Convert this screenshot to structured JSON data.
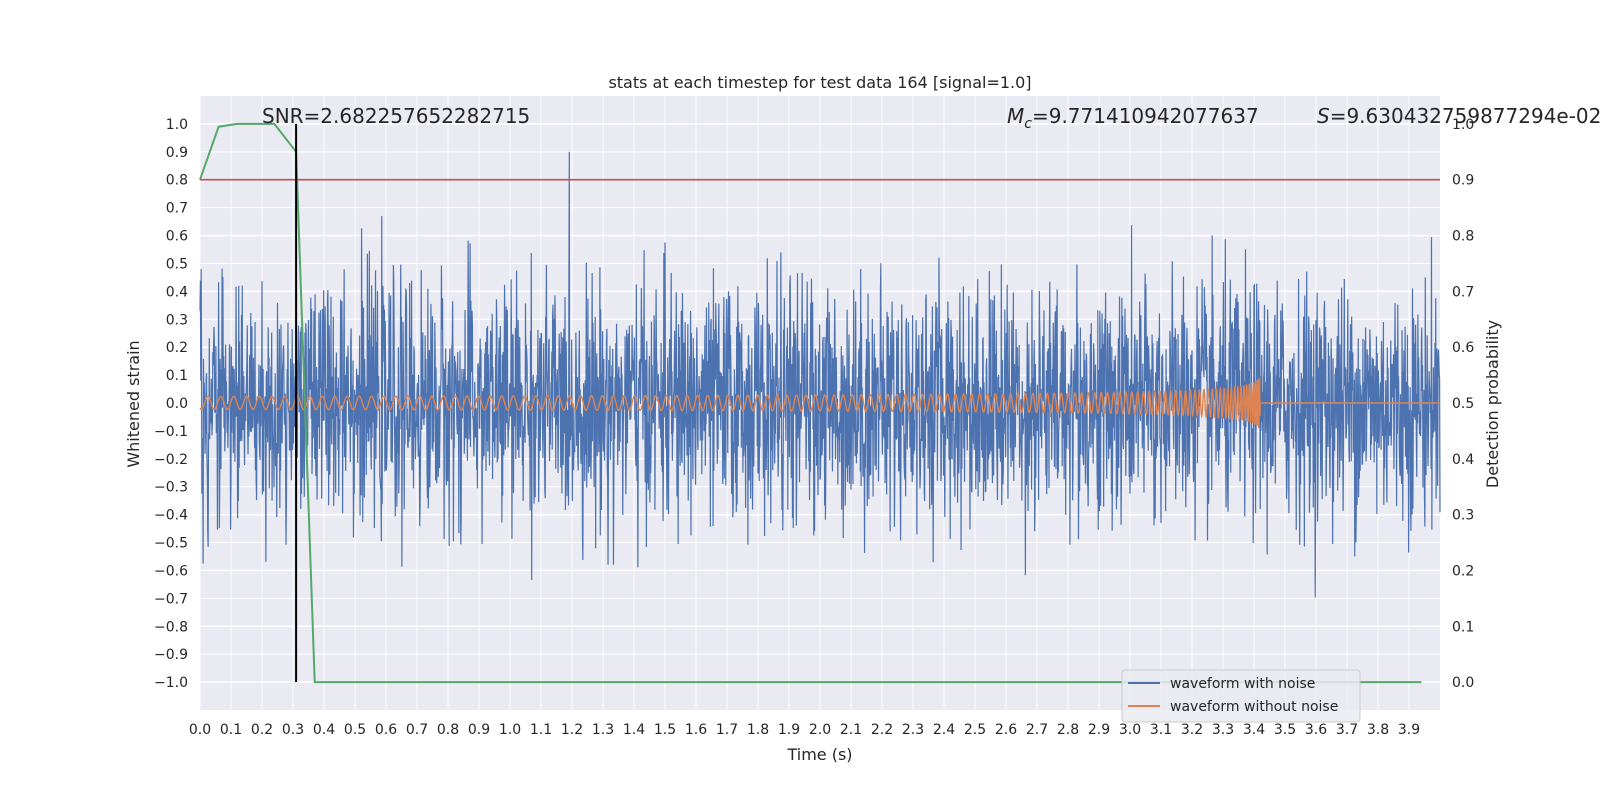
{
  "chart_data": {
    "type": "line",
    "title": "stats at each timestep for test data 164 [signal=1.0]",
    "xlabel": "Time (s)",
    "ylabel_left": "Whitened strain",
    "ylabel_right": "Detection probability",
    "xlim": [
      0.0,
      4.0
    ],
    "ylim_left": [
      -1.1,
      1.1
    ],
    "ylim_right": [
      -0.05,
      1.05
    ],
    "x_ticks": [
      "0.0",
      "0.1",
      "0.2",
      "0.3",
      "0.4",
      "0.5",
      "0.6",
      "0.7",
      "0.8",
      "0.9",
      "1.0",
      "1.1",
      "1.2",
      "1.3",
      "1.4",
      "1.5",
      "1.6",
      "1.7",
      "1.8",
      "1.9",
      "2.0",
      "2.1",
      "2.2",
      "2.3",
      "2.4",
      "2.5",
      "2.6",
      "2.7",
      "2.8",
      "2.9",
      "3.0",
      "3.1",
      "3.2",
      "3.3",
      "3.4",
      "3.5",
      "3.6",
      "3.7",
      "3.8",
      "3.9"
    ],
    "y_ticks_left": [
      "1.0",
      "0.9",
      "0.8",
      "0.7",
      "0.6",
      "0.5",
      "0.4",
      "0.3",
      "0.2",
      "0.1",
      "0.0",
      "−0.1",
      "−0.2",
      "−0.3",
      "−0.4",
      "−0.5",
      "−0.6",
      "−0.7",
      "−0.8",
      "−0.9",
      "−1.0"
    ],
    "y_ticks_right": [
      "1.0",
      "0.9",
      "0.8",
      "0.7",
      "0.6",
      "0.5",
      "0.4",
      "0.3",
      "0.2",
      "0.1",
      "0.0"
    ],
    "annotations": {
      "snr_text": "SNR=2.682257652282715",
      "mc_symbol": "M",
      "mc_sub": "c",
      "mc_value": "=9.771410942077637",
      "s_symbol": "S",
      "s_value": "=9.630432759877294e-02"
    },
    "legend": {
      "placement": "lower-right",
      "entries": [
        "waveform with noise",
        "waveform without noise"
      ]
    },
    "series": [
      {
        "name": "waveform with noise",
        "color": "#4c72b0",
        "axis": "left",
        "description_amplitude": 0.5
      },
      {
        "name": "waveform without noise",
        "color": "#dd8452",
        "axis": "left",
        "chirp_end": 3.42,
        "chirp_peak_amplitude": 0.1
      },
      {
        "name": "detection probability",
        "color": "#55a868",
        "axis": "right",
        "x": [
          0.0,
          0.06,
          0.12,
          0.18,
          0.24,
          0.31,
          0.37,
          0.43,
          3.94
        ],
        "values": [
          0.9,
          0.995,
          1.0,
          1.0,
          1.0,
          0.95,
          0.0,
          0.0,
          0.0
        ]
      }
    ],
    "threshold_line": {
      "value": 0.9,
      "axis": "right",
      "color": "#c44e52"
    },
    "detection_marker": {
      "x": 0.31,
      "color": "#000000"
    },
    "background_color": "#eaeaf2",
    "grid": true
  }
}
